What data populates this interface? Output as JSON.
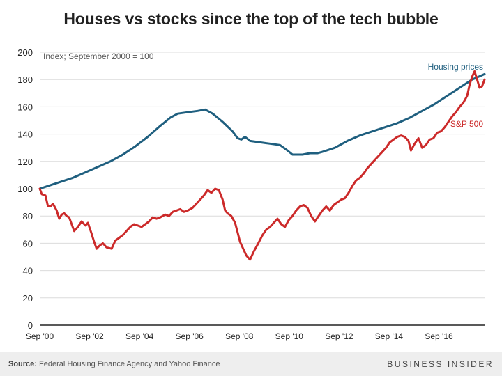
{
  "title": "Houses vs stocks since the top of the tech bubble",
  "source_label": "Source:",
  "source_text": "Federal Housing Finance Agency and Yahoo Finance",
  "brand": "BUSINESS INSIDER",
  "chart_data": {
    "type": "line",
    "subtitle": "Index; September 2000 = 100",
    "ylim": [
      0,
      200
    ],
    "y_ticks": [
      0,
      20,
      40,
      60,
      80,
      100,
      120,
      140,
      160,
      180,
      200
    ],
    "xlim": [
      2000.67,
      2018.5
    ],
    "x_ticks": [
      {
        "value": 2000.67,
        "label": "Sep '00"
      },
      {
        "value": 2002.67,
        "label": "Sep '02"
      },
      {
        "value": 2004.67,
        "label": "Sep '04"
      },
      {
        "value": 2006.67,
        "label": "Sep '06"
      },
      {
        "value": 2008.67,
        "label": "Sep '08"
      },
      {
        "value": 2010.67,
        "label": "Sep '10"
      },
      {
        "value": 2012.67,
        "label": "Sep '12"
      },
      {
        "value": 2014.67,
        "label": "Sep '14"
      },
      {
        "value": 2016.67,
        "label": "Sep '16"
      }
    ],
    "grid": "horizontal",
    "series": [
      {
        "name": "Housing prices",
        "color": "#1f5f7f",
        "points": [
          [
            2000.67,
            100
          ],
          [
            2001.0,
            102
          ],
          [
            2001.5,
            105
          ],
          [
            2002.0,
            108
          ],
          [
            2002.5,
            112
          ],
          [
            2003.0,
            116
          ],
          [
            2003.5,
            120
          ],
          [
            2004.0,
            125
          ],
          [
            2004.5,
            131
          ],
          [
            2005.0,
            138
          ],
          [
            2005.5,
            146
          ],
          [
            2005.9,
            152
          ],
          [
            2006.2,
            155
          ],
          [
            2006.6,
            156
          ],
          [
            2007.0,
            157
          ],
          [
            2007.3,
            158
          ],
          [
            2007.6,
            155
          ],
          [
            2008.0,
            149
          ],
          [
            2008.4,
            142
          ],
          [
            2008.6,
            137
          ],
          [
            2008.75,
            136
          ],
          [
            2008.9,
            138
          ],
          [
            2009.1,
            135
          ],
          [
            2009.5,
            134
          ],
          [
            2009.9,
            133
          ],
          [
            2010.3,
            132
          ],
          [
            2010.6,
            128
          ],
          [
            2010.8,
            125
          ],
          [
            2011.2,
            125
          ],
          [
            2011.5,
            126
          ],
          [
            2011.8,
            126
          ],
          [
            2012.0,
            127
          ],
          [
            2012.5,
            130
          ],
          [
            2013.0,
            135
          ],
          [
            2013.5,
            139
          ],
          [
            2014.0,
            142
          ],
          [
            2014.5,
            145
          ],
          [
            2015.0,
            148
          ],
          [
            2015.5,
            152
          ],
          [
            2016.0,
            157
          ],
          [
            2016.5,
            162
          ],
          [
            2017.0,
            168
          ],
          [
            2017.5,
            174
          ],
          [
            2018.0,
            180
          ],
          [
            2018.5,
            184
          ]
        ]
      },
      {
        "name": "S&P 500",
        "color": "#cc2a2a",
        "points": [
          [
            2000.67,
            100
          ],
          [
            2000.75,
            96
          ],
          [
            2000.9,
            95
          ],
          [
            2001.0,
            87
          ],
          [
            2001.1,
            87
          ],
          [
            2001.2,
            89
          ],
          [
            2001.35,
            84
          ],
          [
            2001.45,
            78
          ],
          [
            2001.55,
            81
          ],
          [
            2001.65,
            82
          ],
          [
            2001.75,
            80
          ],
          [
            2001.85,
            79
          ],
          [
            2001.95,
            74
          ],
          [
            2002.05,
            69
          ],
          [
            2002.2,
            72
          ],
          [
            2002.35,
            76
          ],
          [
            2002.5,
            73
          ],
          [
            2002.6,
            75
          ],
          [
            2002.75,
            67
          ],
          [
            2002.85,
            61
          ],
          [
            2002.95,
            56
          ],
          [
            2003.05,
            58
          ],
          [
            2003.2,
            60
          ],
          [
            2003.35,
            57
          ],
          [
            2003.55,
            56
          ],
          [
            2003.7,
            62
          ],
          [
            2003.85,
            64
          ],
          [
            2004.0,
            66
          ],
          [
            2004.15,
            69
          ],
          [
            2004.3,
            72
          ],
          [
            2004.45,
            74
          ],
          [
            2004.6,
            73
          ],
          [
            2004.75,
            72
          ],
          [
            2004.9,
            74
          ],
          [
            2005.05,
            76
          ],
          [
            2005.2,
            79
          ],
          [
            2005.35,
            78
          ],
          [
            2005.5,
            79
          ],
          [
            2005.7,
            81
          ],
          [
            2005.85,
            80
          ],
          [
            2006.0,
            83
          ],
          [
            2006.15,
            84
          ],
          [
            2006.3,
            85
          ],
          [
            2006.45,
            83
          ],
          [
            2006.6,
            84
          ],
          [
            2006.8,
            86
          ],
          [
            2006.95,
            89
          ],
          [
            2007.1,
            92
          ],
          [
            2007.25,
            95
          ],
          [
            2007.4,
            99
          ],
          [
            2007.55,
            97
          ],
          [
            2007.7,
            100
          ],
          [
            2007.85,
            99
          ],
          [
            2008.0,
            92
          ],
          [
            2008.1,
            84
          ],
          [
            2008.2,
            82
          ],
          [
            2008.35,
            80
          ],
          [
            2008.5,
            75
          ],
          [
            2008.6,
            68
          ],
          [
            2008.7,
            61
          ],
          [
            2008.8,
            57
          ],
          [
            2008.95,
            51
          ],
          [
            2009.1,
            48
          ],
          [
            2009.25,
            54
          ],
          [
            2009.4,
            59
          ],
          [
            2009.6,
            66
          ],
          [
            2009.75,
            70
          ],
          [
            2009.9,
            72
          ],
          [
            2010.05,
            75
          ],
          [
            2010.2,
            78
          ],
          [
            2010.35,
            74
          ],
          [
            2010.5,
            72
          ],
          [
            2010.65,
            77
          ],
          [
            2010.8,
            80
          ],
          [
            2010.95,
            84
          ],
          [
            2011.1,
            87
          ],
          [
            2011.25,
            88
          ],
          [
            2011.4,
            86
          ],
          [
            2011.55,
            80
          ],
          [
            2011.7,
            76
          ],
          [
            2011.85,
            80
          ],
          [
            2012.0,
            84
          ],
          [
            2012.15,
            87
          ],
          [
            2012.3,
            84
          ],
          [
            2012.45,
            88
          ],
          [
            2012.6,
            90
          ],
          [
            2012.75,
            92
          ],
          [
            2012.9,
            93
          ],
          [
            2013.05,
            97
          ],
          [
            2013.2,
            102
          ],
          [
            2013.35,
            106
          ],
          [
            2013.5,
            108
          ],
          [
            2013.65,
            111
          ],
          [
            2013.8,
            115
          ],
          [
            2013.95,
            118
          ],
          [
            2014.1,
            121
          ],
          [
            2014.25,
            124
          ],
          [
            2014.4,
            127
          ],
          [
            2014.55,
            130
          ],
          [
            2014.7,
            134
          ],
          [
            2014.85,
            136
          ],
          [
            2015.0,
            138
          ],
          [
            2015.15,
            139
          ],
          [
            2015.3,
            138
          ],
          [
            2015.45,
            135
          ],
          [
            2015.55,
            128
          ],
          [
            2015.7,
            133
          ],
          [
            2015.85,
            137
          ],
          [
            2016.0,
            130
          ],
          [
            2016.15,
            132
          ],
          [
            2016.3,
            136
          ],
          [
            2016.45,
            137
          ],
          [
            2016.6,
            141
          ],
          [
            2016.75,
            142
          ],
          [
            2016.9,
            145
          ],
          [
            2017.05,
            149
          ],
          [
            2017.2,
            153
          ],
          [
            2017.35,
            156
          ],
          [
            2017.5,
            160
          ],
          [
            2017.65,
            163
          ],
          [
            2017.8,
            168
          ],
          [
            2017.9,
            176
          ],
          [
            2018.0,
            182
          ],
          [
            2018.1,
            186
          ],
          [
            2018.2,
            180
          ],
          [
            2018.3,
            174
          ],
          [
            2018.4,
            175
          ],
          [
            2018.5,
            180
          ]
        ]
      }
    ]
  }
}
